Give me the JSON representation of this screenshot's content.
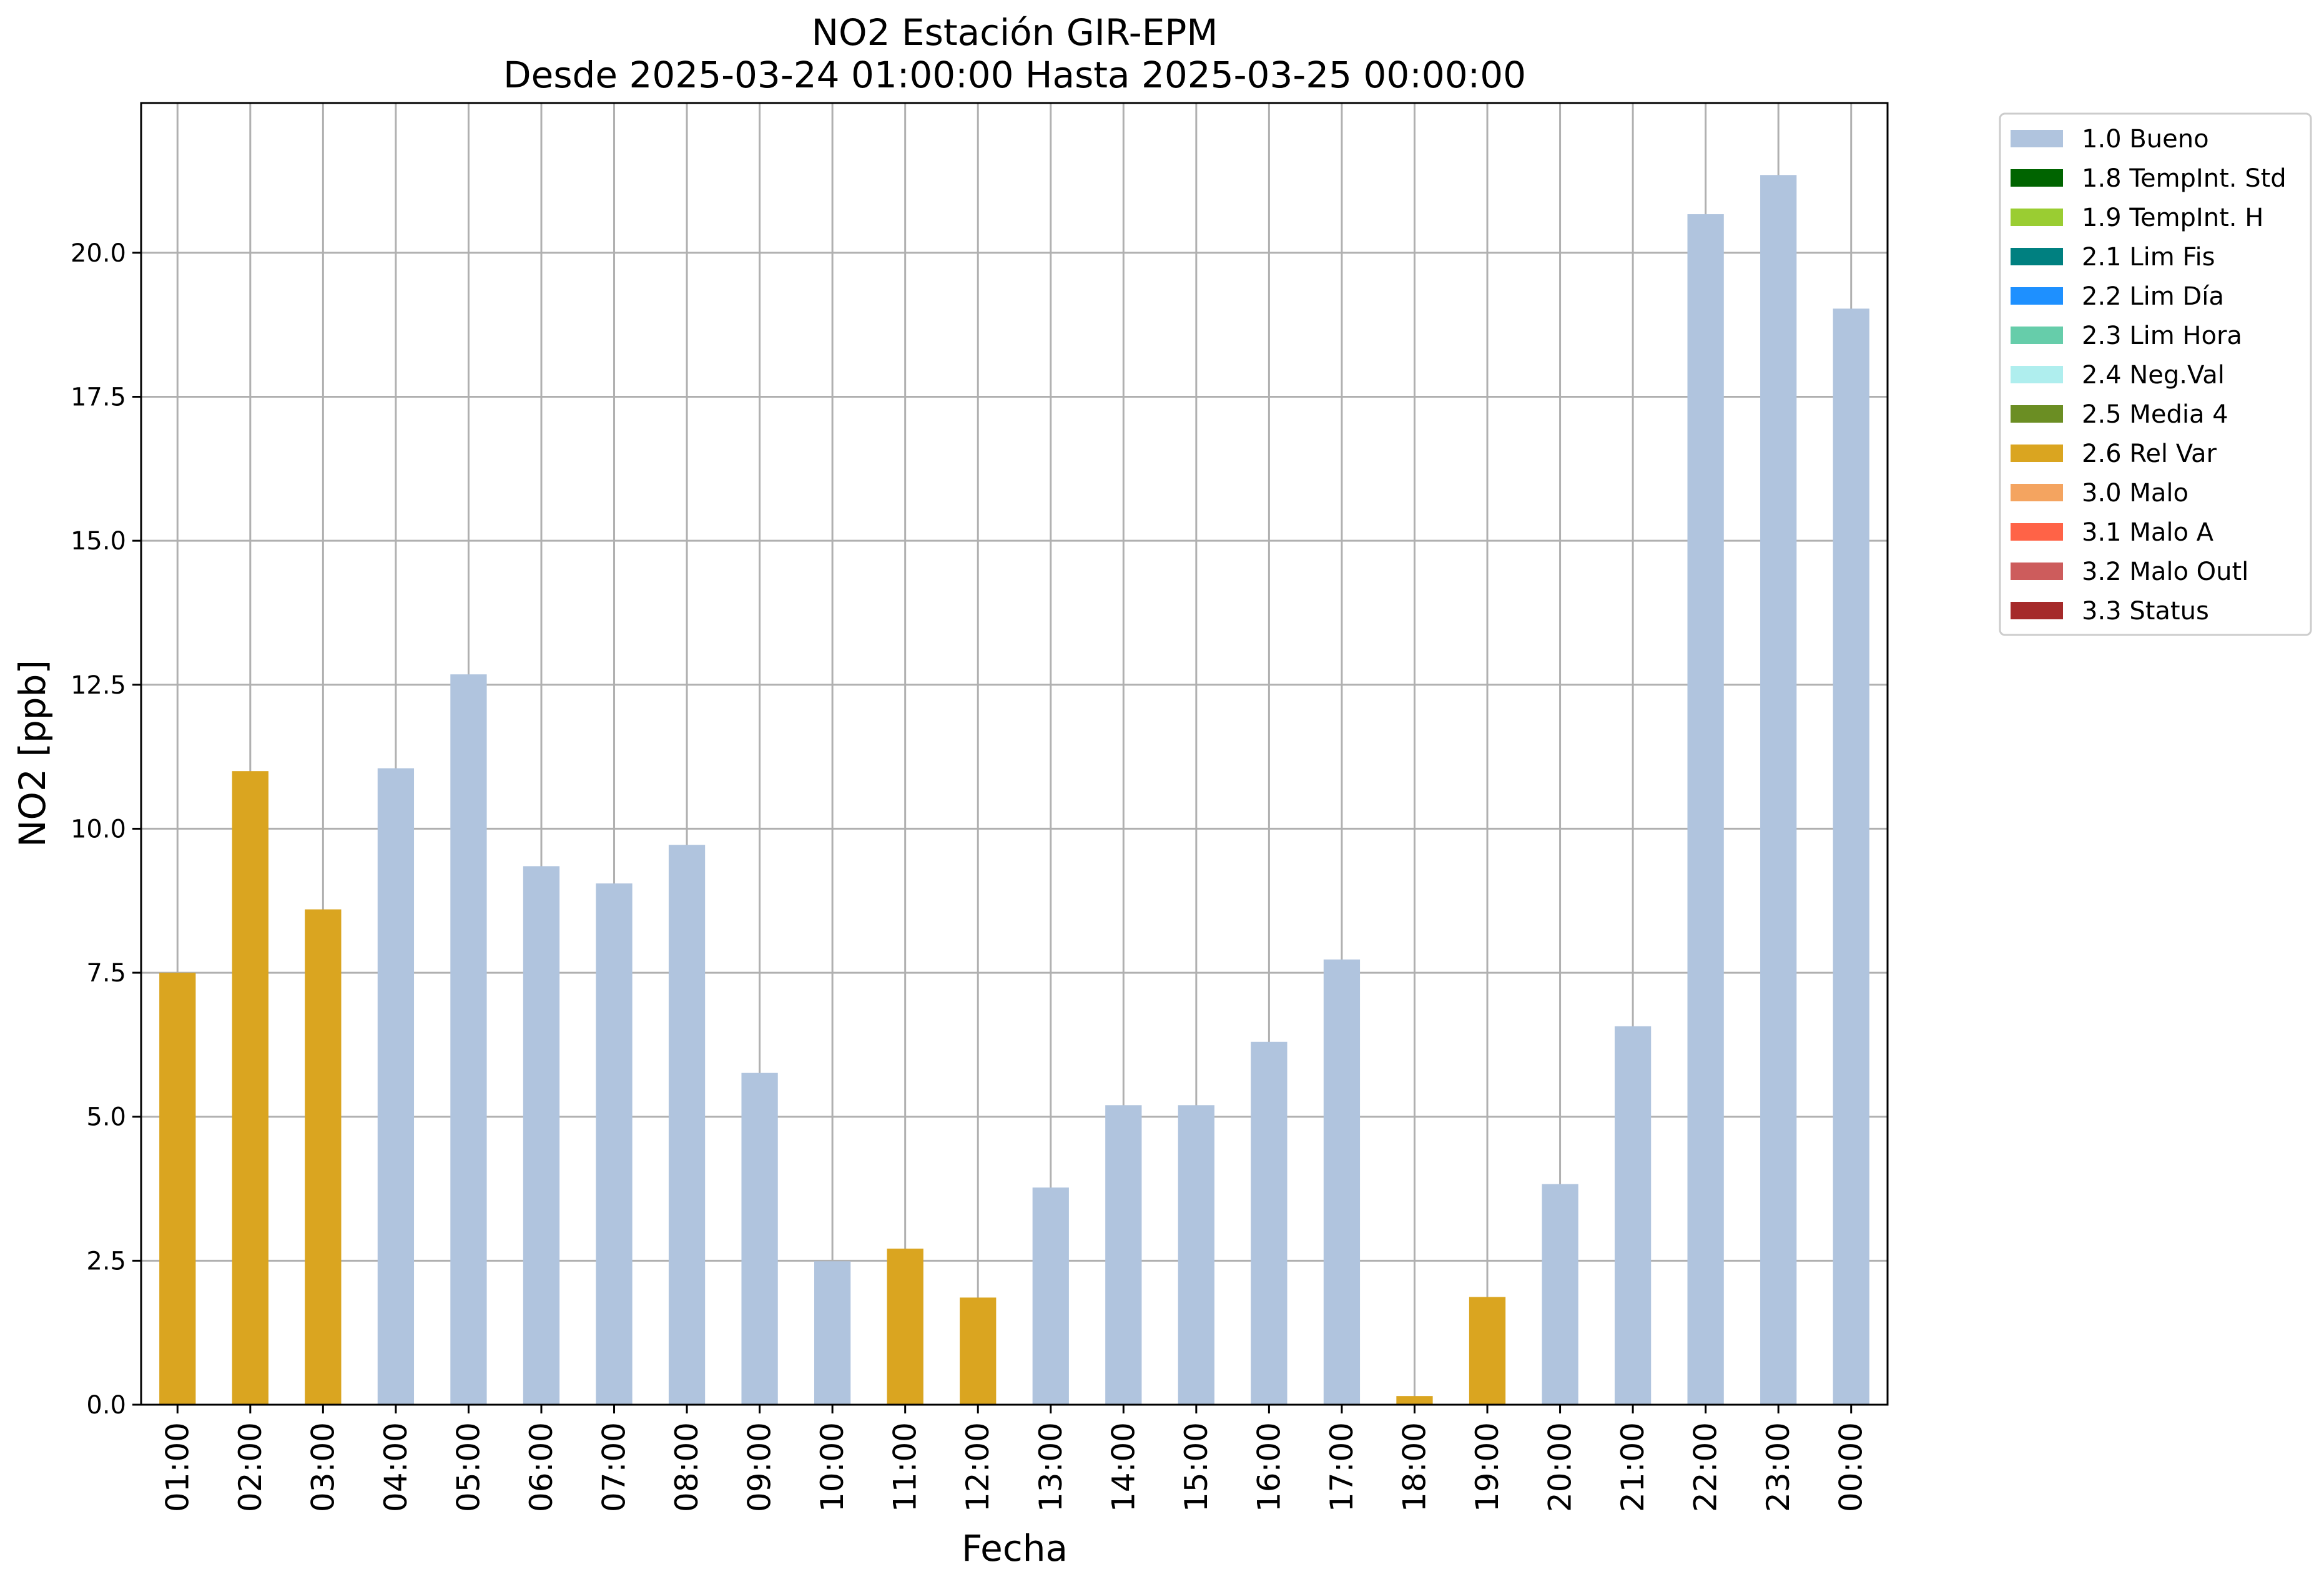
{
  "chart_data": {
    "type": "bar",
    "title": "NO2 Estación GIR-EPM",
    "subtitle": "Desde 2025-03-24 01:00:00 Hasta 2025-03-25 00:00:00",
    "xlabel": "Fecha",
    "ylabel": "NO2 [ppb]",
    "ylim": [
      0,
      22.6
    ],
    "yticks": [
      "0.0",
      "2.5",
      "5.0",
      "7.5",
      "10.0",
      "12.5",
      "15.0",
      "17.5",
      "20.0"
    ],
    "grid": true,
    "legend_position": "outside-top-right",
    "categories": [
      "01:00",
      "02:00",
      "03:00",
      "04:00",
      "05:00",
      "06:00",
      "07:00",
      "08:00",
      "09:00",
      "10:00",
      "11:00",
      "12:00",
      "13:00",
      "14:00",
      "15:00",
      "16:00",
      "17:00",
      "18:00",
      "19:00",
      "20:00",
      "21:00",
      "22:00",
      "23:00",
      "00:00"
    ],
    "values": [
      7.5,
      11.0,
      8.6,
      11.05,
      12.68,
      9.35,
      9.05,
      9.72,
      5.76,
      2.49,
      2.71,
      1.86,
      3.77,
      5.2,
      5.2,
      6.3,
      7.73,
      0.15,
      1.87,
      3.83,
      6.57,
      20.67,
      21.35,
      19.03
    ],
    "flags": [
      "2.6 Rel Var",
      "2.6 Rel Var",
      "2.6 Rel Var",
      "1.0 Bueno",
      "1.0 Bueno",
      "1.0 Bueno",
      "1.0 Bueno",
      "1.0 Bueno",
      "1.0 Bueno",
      "1.0 Bueno",
      "2.6 Rel Var",
      "2.6 Rel Var",
      "1.0 Bueno",
      "1.0 Bueno",
      "1.0 Bueno",
      "1.0 Bueno",
      "1.0 Bueno",
      "2.6 Rel Var",
      "2.6 Rel Var",
      "1.0 Bueno",
      "1.0 Bueno",
      "1.0 Bueno",
      "1.0 Bueno",
      "1.0 Bueno"
    ],
    "legend": [
      {
        "label": "1.0 Bueno",
        "color": "#b0c4de"
      },
      {
        "label": "1.8 TempInt. Std",
        "color": "#006400"
      },
      {
        "label": "1.9 TempInt. H",
        "color": "#9acd32"
      },
      {
        "label": "2.1 Lim Fis",
        "color": "#008080"
      },
      {
        "label": "2.2 Lim Día",
        "color": "#1e90ff"
      },
      {
        "label": "2.3 Lim Hora",
        "color": "#66cdaa"
      },
      {
        "label": "2.4 Neg.Val",
        "color": "#afeeee"
      },
      {
        "label": "2.5 Media 4",
        "color": "#6b8e23"
      },
      {
        "label": "2.6 Rel Var",
        "color": "#daa520"
      },
      {
        "label": "3.0 Malo",
        "color": "#f4a460"
      },
      {
        "label": "3.1 Malo A",
        "color": "#ff6347"
      },
      {
        "label": "3.2 Malo Outl",
        "color": "#cd5c5c"
      },
      {
        "label": "3.3 Status",
        "color": "#a52a2a"
      }
    ]
  }
}
